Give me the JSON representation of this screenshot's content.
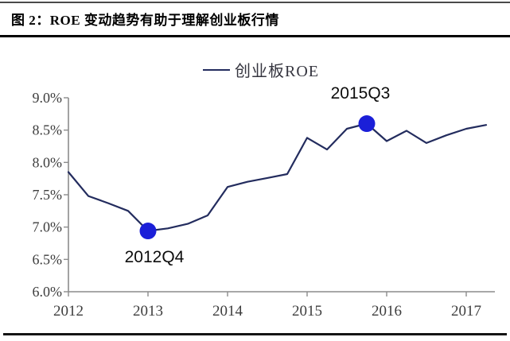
{
  "figure": {
    "title": "图 2：ROE 变动趋势有助于理解创业板行情"
  },
  "legend": {
    "label": "创业板ROE"
  },
  "colors": {
    "line": "#232c5e",
    "marker": "#1b1fd8",
    "axis": "#8c8c8c",
    "tick_text": "#3d3d3d",
    "title_text": "#000000"
  },
  "chart_data": {
    "type": "line",
    "title": "图 2：ROE 变动趋势有助于理解创业板行情",
    "legend_entries": [
      "创业板ROE"
    ],
    "legend_position": "top-center",
    "grid": false,
    "ylim": [
      6.0,
      9.0
    ],
    "xlim": [
      2012,
      2017.36
    ],
    "x_ticks": [
      2012,
      2013,
      2014,
      2015,
      2016,
      2017
    ],
    "x_tick_labels": [
      "2012",
      "2013",
      "2014",
      "2015",
      "2016",
      "2017"
    ],
    "y_ticks": [
      9.0,
      8.5,
      8.0,
      7.5,
      7.0,
      6.5,
      6.0
    ],
    "y_tick_labels": [
      "9.0%",
      "8.5%",
      "8.0%",
      "7.5%",
      "7.0%",
      "6.5%",
      "6.0%"
    ],
    "series": [
      {
        "name": "创业板ROE",
        "periods": [
          "2011Q4",
          "2012Q1",
          "2012Q2",
          "2012Q3",
          "2012Q4",
          "2013Q1",
          "2013Q2",
          "2013Q3",
          "2013Q4",
          "2014Q1",
          "2014Q2",
          "2014Q3",
          "2014Q4",
          "2015Q1",
          "2015Q2",
          "2015Q3",
          "2015Q4",
          "2016Q1",
          "2016Q2",
          "2016Q3",
          "2016Q4",
          "2017Q1"
        ],
        "x": [
          2012.0,
          2012.25,
          2012.5,
          2012.75,
          2013.0,
          2013.25,
          2013.5,
          2013.75,
          2014.0,
          2014.25,
          2014.5,
          2014.75,
          2015.0,
          2015.25,
          2015.5,
          2015.75,
          2016.0,
          2016.25,
          2016.5,
          2016.75,
          2017.0,
          2017.25
        ],
        "values": [
          7.85,
          7.48,
          7.37,
          7.25,
          6.94,
          6.98,
          7.05,
          7.18,
          7.62,
          7.7,
          7.76,
          7.82,
          8.38,
          8.2,
          8.52,
          8.6,
          8.33,
          8.49,
          8.3,
          8.42,
          8.52,
          8.58
        ]
      }
    ],
    "annotations": [
      {
        "label": "2012Q4",
        "x": 2013.0,
        "value": 6.94
      },
      {
        "label": "2015Q3",
        "x": 2015.75,
        "value": 8.6
      }
    ]
  }
}
